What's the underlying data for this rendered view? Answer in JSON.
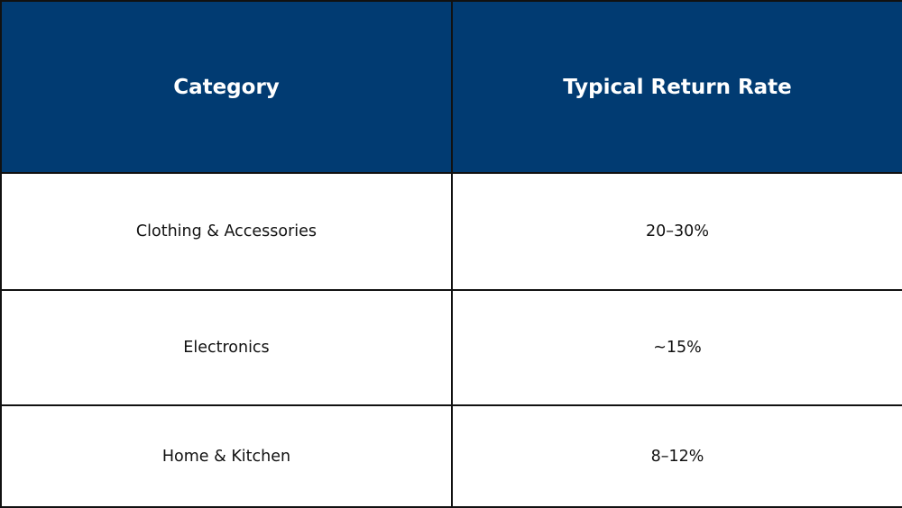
{
  "chart_data": {
    "type": "table",
    "columns": [
      "Category",
      "Typical Return Rate"
    ],
    "rows": [
      [
        "Clothing & Accessories",
        "20–30%"
      ],
      [
        "Electronics",
        "~15%"
      ],
      [
        "Home & Kitchen",
        "8–12%"
      ]
    ]
  },
  "colors": {
    "header_background": "#013b72",
    "header_text": "#ffffff",
    "border": "#111111",
    "cell_background": "#ffffff"
  }
}
